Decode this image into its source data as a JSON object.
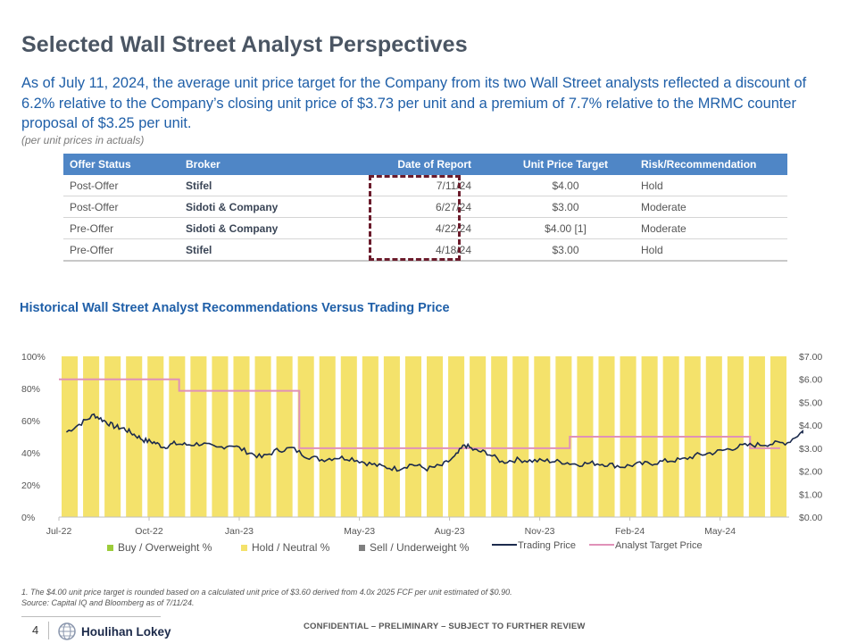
{
  "page": {
    "title": "Selected Wall Street Analyst Perspectives",
    "summary": "As of July 11, 2024, the average unit price target for the Company from its two Wall Street analysts reflected a discount of 6.2% relative to the Company’s closing unit price of $3.73 per unit and a premium of 7.7% relative to the MRMC counter proposal of $3.25 per unit.",
    "units_note": "(per unit prices in actuals)"
  },
  "table": {
    "headers": [
      "Offer Status",
      "Broker",
      "Date of Report",
      "Unit Price Target",
      "Risk/Recommendation"
    ],
    "rows": [
      [
        "Post-Offer",
        "Stifel",
        "7/11/24",
        "$4.00",
        "Hold"
      ],
      [
        "Post-Offer",
        "Sidoti & Company",
        "6/27/24",
        "$3.00",
        "Moderate"
      ],
      [
        "Pre-Offer",
        "Sidoti & Company",
        "4/22/24",
        "$4.00 [1]",
        "Moderate"
      ],
      [
        "Pre-Offer",
        "Stifel",
        "4/18/24",
        "$3.00",
        "Hold"
      ]
    ]
  },
  "chart_title": "Historical Wall Street Analyst Recommendations Versus Trading Price",
  "chart_data": {
    "type": "bar",
    "title": "Historical Wall Street Analyst Recommendations Versus Trading Price",
    "x_tick_labels": [
      "Jul-22",
      "Oct-22",
      "Jan-23",
      "May-23",
      "Aug-23",
      "Nov-23",
      "Feb-24",
      "May-24"
    ],
    "left_axis": {
      "ticks": [
        "0%",
        "20%",
        "40%",
        "60%",
        "80%",
        "100%"
      ],
      "ylim": [
        0,
        100
      ]
    },
    "right_axis": {
      "ticks": [
        "$0.00",
        "$1.00",
        "$2.00",
        "$3.00",
        "$4.00",
        "$5.00",
        "$6.00",
        "$7.00"
      ],
      "ylim": [
        0,
        7
      ]
    },
    "bar_series": [
      {
        "name": "Buy / Overweight %",
        "color": "#9ccc3a",
        "value_each_period": 0
      },
      {
        "name": "Hold / Neutral %",
        "color": "#f4e26b",
        "value_each_period": 100
      },
      {
        "name": "Sell / Underweight %",
        "color": "#7f7f7f",
        "value_each_period": 0
      }
    ],
    "bar_count": 34,
    "trading_price": {
      "name": "Trading Price",
      "color": "#1c2b4d",
      "points": [
        [
          "Jul-22",
          3.7
        ],
        [
          "Jul-22",
          4.1
        ],
        [
          "Aug-22",
          4.45
        ],
        [
          "Aug-22",
          4.2
        ],
        [
          "Aug-22",
          3.95
        ],
        [
          "Sep-22",
          3.85
        ],
        [
          "Sep-22",
          3.6
        ],
        [
          "Sep-22",
          3.35
        ],
        [
          "Oct-22",
          3.25
        ],
        [
          "Oct-22",
          3.05
        ],
        [
          "Oct-22",
          3.2
        ],
        [
          "Nov-22",
          3.15
        ],
        [
          "Nov-22",
          3.2
        ],
        [
          "Dec-22",
          3.0
        ],
        [
          "Dec-22",
          3.15
        ],
        [
          "Jan-23",
          2.85
        ],
        [
          "Jan-23",
          2.6
        ],
        [
          "Feb-23",
          2.9
        ],
        [
          "Feb-23",
          3.0
        ],
        [
          "Mar-23",
          2.65
        ],
        [
          "Mar-23",
          2.5
        ],
        [
          "Apr-23",
          2.6
        ],
        [
          "Apr-23",
          2.55
        ],
        [
          "May-23",
          2.35
        ],
        [
          "May-23",
          2.2
        ],
        [
          "Jun-23",
          2.1
        ],
        [
          "Jun-23",
          2.3
        ],
        [
          "Jul-23",
          2.1
        ],
        [
          "Jul-23",
          2.25
        ],
        [
          "Aug-23",
          2.6
        ],
        [
          "Aug-23",
          3.15
        ],
        [
          "Aug-23",
          2.9
        ],
        [
          "Sep-23",
          2.8
        ],
        [
          "Sep-23",
          2.4
        ],
        [
          "Oct-23",
          2.5
        ],
        [
          "Oct-23",
          2.45
        ],
        [
          "Nov-23",
          2.45
        ],
        [
          "Nov-23",
          2.4
        ],
        [
          "Dec-23",
          2.3
        ],
        [
          "Dec-23",
          2.35
        ],
        [
          "Jan-24",
          2.3
        ],
        [
          "Jan-24",
          2.2
        ],
        [
          "Feb-24",
          2.3
        ],
        [
          "Feb-24",
          2.35
        ],
        [
          "Mar-24",
          2.45
        ],
        [
          "Mar-24",
          2.5
        ],
        [
          "Apr-24",
          2.7
        ],
        [
          "Apr-24",
          2.8
        ],
        [
          "May-24",
          2.95
        ],
        [
          "May-24",
          3.1
        ],
        [
          "Jun-24",
          3.15
        ],
        [
          "Jun-24",
          3.2
        ],
        [
          "Jul-24",
          3.25
        ],
        [
          "Jul-24",
          3.73
        ]
      ]
    },
    "analyst_target_price": {
      "name": "Analyst Target Price",
      "color": "#e091b8",
      "steps": [
        {
          "from": "Jul-22",
          "to": "Nov-22",
          "value": 6.0
        },
        {
          "from": "Nov-22",
          "to": "Mar-23",
          "value": 5.5
        },
        {
          "from": "Mar-23",
          "to": "Dec-23",
          "value": 3.0
        },
        {
          "from": "Dec-23",
          "to": "Jun-24",
          "value": 3.5
        },
        {
          "from": "Jun-24",
          "to": "Jul-24",
          "value": 3.0
        }
      ]
    },
    "legend": [
      "Buy / Overweight %",
      "Hold / Neutral %",
      "Sell / Underweight %",
      "Trading Price",
      "Analyst Target Price"
    ],
    "legend_position": "bottom"
  },
  "footnote": {
    "line1": "1.   The $4.00 unit price target is rounded based on a calculated unit price of $3.60 derived from 4.0x 2025 FCF per unit estimated of $0.90.",
    "line2": "Source: Capital IQ and Bloomberg as of 7/11/24."
  },
  "footer": {
    "page_number": "4",
    "logo_text": "Houlihan Lokey",
    "confidential": "CONFIDENTIAL – PRELIMINARY – SUBJECT TO FURTHER REVIEW"
  }
}
